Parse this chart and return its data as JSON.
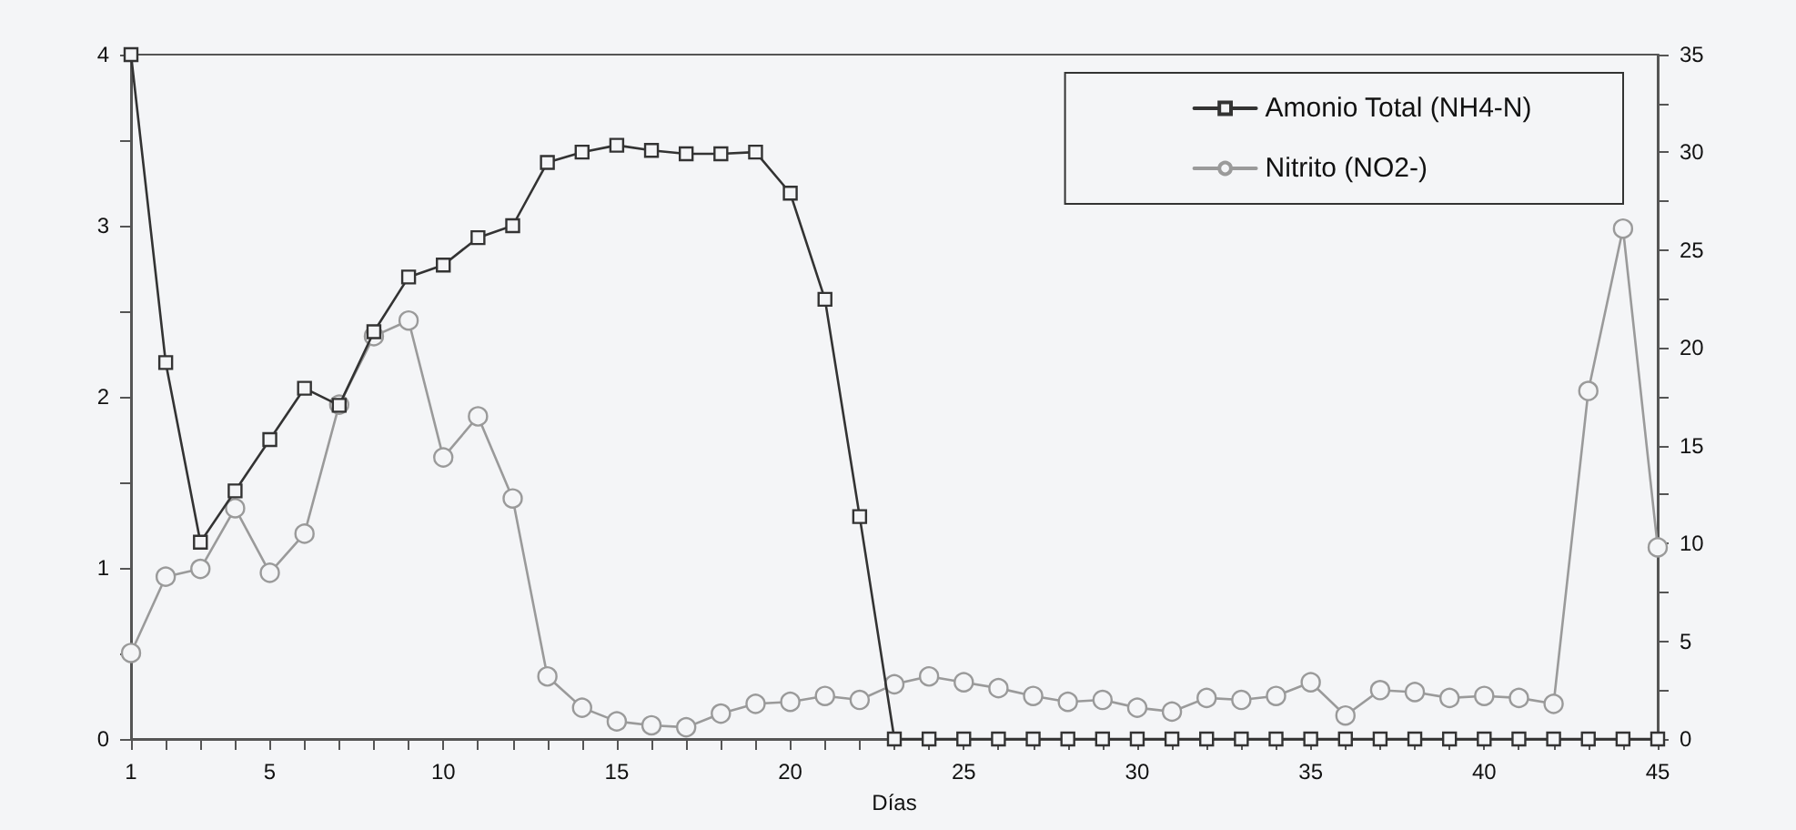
{
  "chart_data": {
    "type": "line",
    "xlabel": "Días",
    "x": [
      1,
      2,
      3,
      4,
      5,
      6,
      7,
      8,
      9,
      10,
      11,
      12,
      13,
      14,
      15,
      16,
      17,
      18,
      19,
      20,
      21,
      22,
      23,
      24,
      25,
      26,
      27,
      28,
      29,
      30,
      31,
      32,
      33,
      34,
      35,
      36,
      37,
      38,
      39,
      40,
      41,
      42,
      43,
      44,
      45
    ],
    "series": [
      {
        "name": "Amonio Total (NH4-N)",
        "color": "#333333",
        "marker": "square",
        "values": [
          4,
          2.2,
          1.15,
          1.45,
          1.75,
          2.05,
          1.95,
          2.38,
          2.7,
          2.77,
          2.93,
          3.0,
          3.37,
          3.43,
          3.47,
          3.44,
          3.42,
          3.42,
          3.43,
          3.19,
          2.57,
          1.3,
          0,
          0,
          0,
          0,
          0,
          0,
          0,
          0,
          0,
          0,
          0,
          0,
          0,
          0,
          0,
          0,
          0,
          0,
          0,
          0,
          0,
          0,
          0
        ]
      },
      {
        "name": "Nitrito (NO2-)",
        "color": "#9a9a9a",
        "marker": "circle",
        "axis": "y2",
        "values": [
          4.4,
          8.3,
          8.7,
          11.8,
          8.5,
          10.5,
          17.1,
          20.6,
          21.4,
          14.4,
          16.5,
          12.3,
          3.2,
          1.6,
          0.9,
          0.7,
          0.6,
          1.3,
          1.8,
          1.9,
          2.2,
          2.0,
          2.8,
          3.2,
          2.9,
          2.6,
          2.2,
          1.9,
          2.0,
          1.6,
          1.4,
          2.1,
          2.0,
          2.2,
          2.9,
          1.2,
          2.5,
          2.4,
          2.1,
          2.2,
          2.1,
          1.8,
          17.8,
          26.1,
          9.8
        ]
      }
    ],
    "xlim": [
      1,
      45
    ],
    "xticks": [
      1,
      {
        "value": 2,
        "label": null
      },
      {
        "value": 3,
        "label": null
      },
      {
        "value": 4,
        "label": null
      },
      5,
      {
        "value": 6,
        "label": null
      },
      {
        "value": 7,
        "label": null
      },
      {
        "value": 8,
        "label": null
      },
      {
        "value": 9,
        "label": null
      },
      10,
      {
        "value": 11,
        "label": null
      },
      {
        "value": 12,
        "label": null
      },
      {
        "value": 13,
        "label": null
      },
      {
        "value": 14,
        "label": null
      },
      15,
      {
        "value": 16,
        "label": null
      },
      {
        "value": 17,
        "label": null
      },
      {
        "value": 18,
        "label": null
      },
      {
        "value": 19,
        "label": null
      },
      20,
      {
        "value": 21,
        "label": null
      },
      {
        "value": 22,
        "label": null
      },
      {
        "value": 23,
        "label": null
      },
      {
        "value": 24,
        "label": null
      },
      25,
      {
        "value": 26,
        "label": null
      },
      {
        "value": 27,
        "label": null
      },
      {
        "value": 28,
        "label": null
      },
      {
        "value": 29,
        "label": null
      },
      30,
      {
        "value": 31,
        "label": null
      },
      {
        "value": 32,
        "label": null
      },
      {
        "value": 33,
        "label": null
      },
      {
        "value": 34,
        "label": null
      },
      35,
      {
        "value": 36,
        "label": null
      },
      {
        "value": 37,
        "label": null
      },
      {
        "value": 38,
        "label": null
      },
      {
        "value": 39,
        "label": null
      },
      40,
      {
        "value": 41,
        "label": null
      },
      {
        "value": 42,
        "label": null
      },
      {
        "value": 43,
        "label": null
      },
      {
        "value": 44,
        "label": null
      },
      45
    ],
    "ylim": [
      0,
      4
    ],
    "yticks": [
      0,
      {
        "value": 0.5,
        "label": null
      },
      1,
      {
        "value": 1.5,
        "label": null
      },
      2,
      {
        "value": 2.5,
        "label": null
      },
      3,
      {
        "value": 3.5,
        "label": null
      },
      4
    ],
    "y2lim": [
      0,
      35
    ],
    "y2ticks": [
      0,
      {
        "value": 2.5,
        "label": null
      },
      5,
      {
        "value": 7.5,
        "label": null
      },
      10,
      {
        "value": 12.5,
        "label": null
      },
      15,
      {
        "value": 17.5,
        "label": null
      },
      20,
      {
        "value": 22.5,
        "label": null
      },
      25,
      {
        "value": 27.5,
        "label": null
      },
      30,
      {
        "value": 32.5,
        "label": null
      },
      35
    ],
    "grid": false,
    "legend": "top right",
    "line_style": "solid"
  }
}
